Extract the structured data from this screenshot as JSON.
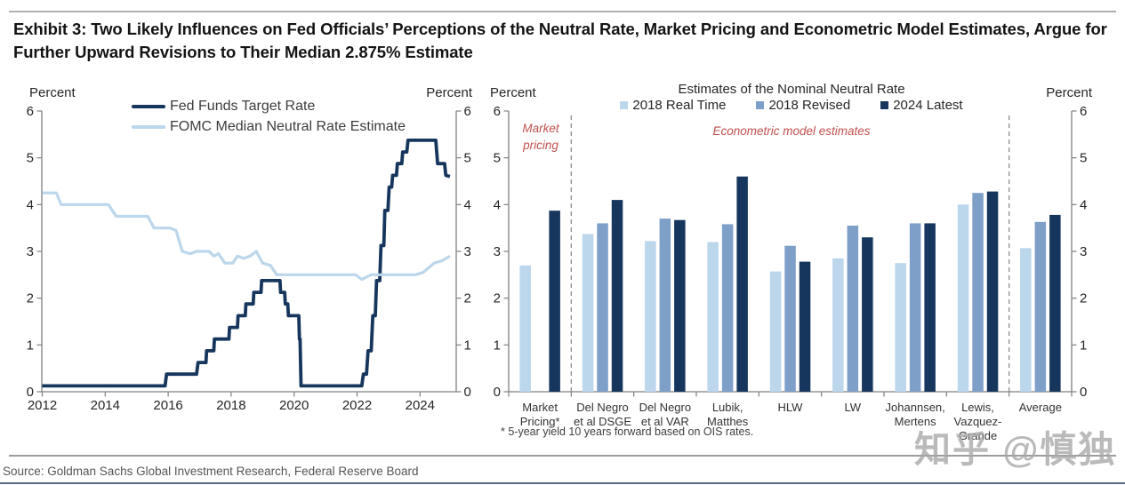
{
  "page": {
    "title": "Exhibit 3: Two Likely Influences on Fed Officials’ Perceptions of the Neutral Rate, Market Pricing and Econometric Model Estimates, Argue for Further Upward Revisions to Their Median 2.875% Estimate",
    "source": "Source: Goldman Sachs Global Investment Research, Federal Reserve Board",
    "watermark": "知乎 @慎独"
  },
  "colors": {
    "navy": "#17365D",
    "medium_blue": "#7E9FC8",
    "light_blue": "#BCD6EC",
    "red_label": "#C0504D",
    "axis": "#808080",
    "text": "#262626"
  },
  "chart_data": [
    {
      "type": "line",
      "title": "",
      "xlabel": "",
      "ylabel_left": "Percent",
      "ylabel_right": "Percent",
      "ylim": [
        0,
        6
      ],
      "yticks": [
        0,
        1,
        2,
        3,
        4,
        5,
        6
      ],
      "xlim": [
        2012,
        2025
      ],
      "xticks": [
        2012,
        2014,
        2016,
        2018,
        2020,
        2022,
        2024
      ],
      "legend_position": "top-left-inside",
      "grid": false,
      "series": [
        {
          "name": "Fed Funds Target Rate",
          "color_key": "navy",
          "points": [
            [
              2012.0,
              0.125
            ],
            [
              2015.9,
              0.125
            ],
            [
              2015.95,
              0.375
            ],
            [
              2016.9,
              0.375
            ],
            [
              2016.95,
              0.625
            ],
            [
              2017.2,
              0.625
            ],
            [
              2017.22,
              0.875
            ],
            [
              2017.45,
              0.875
            ],
            [
              2017.47,
              1.125
            ],
            [
              2017.93,
              1.125
            ],
            [
              2017.95,
              1.375
            ],
            [
              2018.2,
              1.375
            ],
            [
              2018.22,
              1.625
            ],
            [
              2018.45,
              1.625
            ],
            [
              2018.47,
              1.875
            ],
            [
              2018.7,
              1.875
            ],
            [
              2018.72,
              2.125
            ],
            [
              2018.95,
              2.125
            ],
            [
              2018.97,
              2.375
            ],
            [
              2019.55,
              2.375
            ],
            [
              2019.57,
              2.125
            ],
            [
              2019.7,
              2.125
            ],
            [
              2019.72,
              1.875
            ],
            [
              2019.8,
              1.875
            ],
            [
              2019.82,
              1.625
            ],
            [
              2020.15,
              1.625
            ],
            [
              2020.17,
              1.125
            ],
            [
              2020.19,
              1.125
            ],
            [
              2020.22,
              0.125
            ],
            [
              2022.15,
              0.125
            ],
            [
              2022.2,
              0.375
            ],
            [
              2022.3,
              0.375
            ],
            [
              2022.35,
              0.875
            ],
            [
              2022.45,
              0.875
            ],
            [
              2022.5,
              1.625
            ],
            [
              2022.58,
              1.625
            ],
            [
              2022.62,
              2.375
            ],
            [
              2022.72,
              2.375
            ],
            [
              2022.76,
              3.125
            ],
            [
              2022.85,
              3.125
            ],
            [
              2022.88,
              3.875
            ],
            [
              2022.98,
              3.875
            ],
            [
              2023.02,
              4.375
            ],
            [
              2023.1,
              4.375
            ],
            [
              2023.13,
              4.625
            ],
            [
              2023.25,
              4.625
            ],
            [
              2023.28,
              4.875
            ],
            [
              2023.42,
              4.875
            ],
            [
              2023.45,
              5.125
            ],
            [
              2023.58,
              5.125
            ],
            [
              2023.62,
              5.375
            ],
            [
              2024.5,
              5.375
            ],
            [
              2024.56,
              4.875
            ],
            [
              2024.78,
              4.875
            ],
            [
              2024.82,
              4.625
            ],
            [
              2024.95,
              4.6
            ]
          ]
        },
        {
          "name": "FOMC Median Neutral Rate Estimate",
          "color_key": "light_blue",
          "points": [
            [
              2012.0,
              4.25
            ],
            [
              2012.45,
              4.25
            ],
            [
              2012.6,
              4.0
            ],
            [
              2014.1,
              4.0
            ],
            [
              2014.35,
              3.75
            ],
            [
              2015.35,
              3.75
            ],
            [
              2015.55,
              3.5
            ],
            [
              2016.05,
              3.5
            ],
            [
              2016.25,
              3.45
            ],
            [
              2016.45,
              3.0
            ],
            [
              2016.7,
              2.95
            ],
            [
              2016.9,
              3.0
            ],
            [
              2017.3,
              3.0
            ],
            [
              2017.45,
              2.9
            ],
            [
              2017.6,
              2.95
            ],
            [
              2017.8,
              2.75
            ],
            [
              2018.05,
              2.75
            ],
            [
              2018.2,
              2.9
            ],
            [
              2018.4,
              2.85
            ],
            [
              2018.6,
              2.9
            ],
            [
              2018.8,
              3.0
            ],
            [
              2019.0,
              2.75
            ],
            [
              2019.25,
              2.7
            ],
            [
              2019.45,
              2.5
            ],
            [
              2021.95,
              2.5
            ],
            [
              2022.15,
              2.4
            ],
            [
              2022.45,
              2.5
            ],
            [
              2023.85,
              2.5
            ],
            [
              2024.1,
              2.55
            ],
            [
              2024.45,
              2.75
            ],
            [
              2024.7,
              2.8
            ],
            [
              2024.95,
              2.9
            ]
          ]
        }
      ]
    },
    {
      "type": "bar",
      "title": "Estimates of the Nominal Neutral Rate",
      "xlabel": "",
      "ylabel_left": "Percent",
      "ylabel_right": "Percent",
      "ylim": [
        0,
        6
      ],
      "yticks": [
        0,
        1,
        2,
        3,
        4,
        5,
        6
      ],
      "grid": false,
      "legend_position": "top-center",
      "categories": [
        "Market Pricing*",
        "Del Negro et al DSGE",
        "Del Negro et al VAR",
        "Lubik, Matthes",
        "HLW",
        "LW",
        "Johannsen, Mertens",
        "Lewis, Vazquez-Grande",
        "Average"
      ],
      "category_label_lines": [
        [
          "Market",
          "Pricing*"
        ],
        [
          "Del Negro",
          "et al DSGE"
        ],
        [
          "Del Negro",
          "et al VAR"
        ],
        [
          "Lubik,",
          "Matthes"
        ],
        [
          "HLW"
        ],
        [
          "LW"
        ],
        [
          "Johannsen,",
          "Mertens"
        ],
        [
          "Lewis,",
          "Vazquez-",
          "Grande"
        ],
        [
          "Average"
        ]
      ],
      "series": [
        {
          "name": "2018 Real Time",
          "color_key": "light_blue",
          "values": [
            2.7,
            3.37,
            3.22,
            3.2,
            2.57,
            2.85,
            2.75,
            4.0,
            3.07
          ]
        },
        {
          "name": "2018 Revised",
          "color_key": "medium_blue",
          "values": [
            null,
            3.6,
            3.7,
            3.58,
            3.12,
            3.55,
            3.6,
            4.25,
            3.63
          ]
        },
        {
          "name": "2024 Latest",
          "color_key": "navy",
          "values": [
            3.87,
            4.1,
            3.67,
            4.6,
            2.78,
            3.3,
            3.6,
            4.28,
            3.78
          ]
        }
      ],
      "section_labels": [
        {
          "text": "Market pricing"
        },
        {
          "text": "Econometric model estimates"
        }
      ],
      "separators_after_category": [
        0,
        7
      ],
      "footnote": "* 5-year yield 10 years forward based on OIS rates."
    }
  ]
}
